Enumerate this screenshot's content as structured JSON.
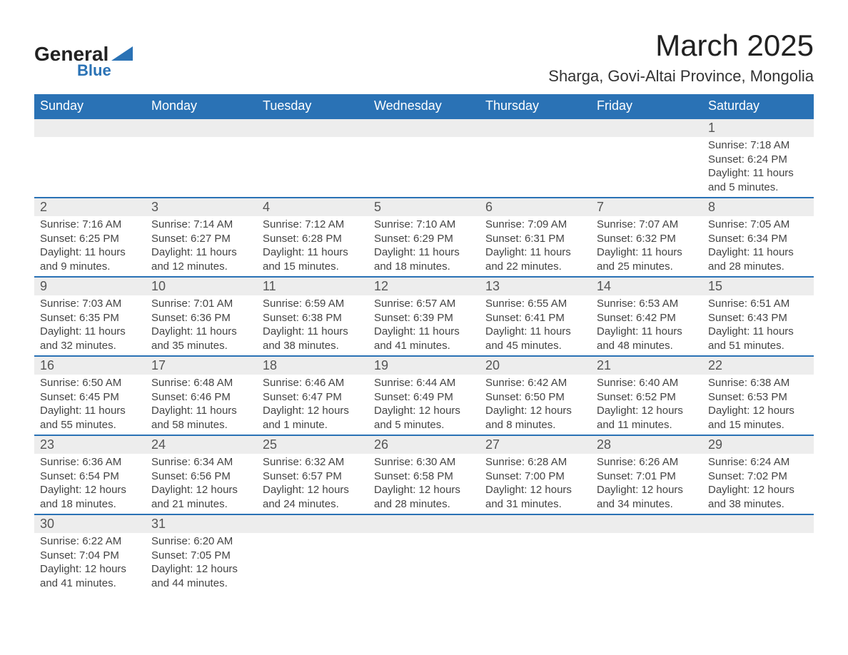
{
  "logo": {
    "text1": "General",
    "text2": "Blue"
  },
  "title": "March 2025",
  "location": "Sharga, Govi-Altai Province, Mongolia",
  "colors": {
    "header_bg": "#2a72b5",
    "header_text": "#ffffff",
    "daynum_bg": "#ededed",
    "body_text": "#444444",
    "row_divider": "#2a72b5"
  },
  "fonts": {
    "title_size_pt": 32,
    "location_size_pt": 17,
    "weekday_size_pt": 14,
    "daynum_size_pt": 14,
    "cell_size_pt": 11
  },
  "weekdays": [
    "Sunday",
    "Monday",
    "Tuesday",
    "Wednesday",
    "Thursday",
    "Friday",
    "Saturday"
  ],
  "weeks": [
    [
      null,
      null,
      null,
      null,
      null,
      null,
      {
        "n": "1",
        "sr": "Sunrise: 7:18 AM",
        "ss": "Sunset: 6:24 PM",
        "d1": "Daylight: 11 hours",
        "d2": "and 5 minutes."
      }
    ],
    [
      {
        "n": "2",
        "sr": "Sunrise: 7:16 AM",
        "ss": "Sunset: 6:25 PM",
        "d1": "Daylight: 11 hours",
        "d2": "and 9 minutes."
      },
      {
        "n": "3",
        "sr": "Sunrise: 7:14 AM",
        "ss": "Sunset: 6:27 PM",
        "d1": "Daylight: 11 hours",
        "d2": "and 12 minutes."
      },
      {
        "n": "4",
        "sr": "Sunrise: 7:12 AM",
        "ss": "Sunset: 6:28 PM",
        "d1": "Daylight: 11 hours",
        "d2": "and 15 minutes."
      },
      {
        "n": "5",
        "sr": "Sunrise: 7:10 AM",
        "ss": "Sunset: 6:29 PM",
        "d1": "Daylight: 11 hours",
        "d2": "and 18 minutes."
      },
      {
        "n": "6",
        "sr": "Sunrise: 7:09 AM",
        "ss": "Sunset: 6:31 PM",
        "d1": "Daylight: 11 hours",
        "d2": "and 22 minutes."
      },
      {
        "n": "7",
        "sr": "Sunrise: 7:07 AM",
        "ss": "Sunset: 6:32 PM",
        "d1": "Daylight: 11 hours",
        "d2": "and 25 minutes."
      },
      {
        "n": "8",
        "sr": "Sunrise: 7:05 AM",
        "ss": "Sunset: 6:34 PM",
        "d1": "Daylight: 11 hours",
        "d2": "and 28 minutes."
      }
    ],
    [
      {
        "n": "9",
        "sr": "Sunrise: 7:03 AM",
        "ss": "Sunset: 6:35 PM",
        "d1": "Daylight: 11 hours",
        "d2": "and 32 minutes."
      },
      {
        "n": "10",
        "sr": "Sunrise: 7:01 AM",
        "ss": "Sunset: 6:36 PM",
        "d1": "Daylight: 11 hours",
        "d2": "and 35 minutes."
      },
      {
        "n": "11",
        "sr": "Sunrise: 6:59 AM",
        "ss": "Sunset: 6:38 PM",
        "d1": "Daylight: 11 hours",
        "d2": "and 38 minutes."
      },
      {
        "n": "12",
        "sr": "Sunrise: 6:57 AM",
        "ss": "Sunset: 6:39 PM",
        "d1": "Daylight: 11 hours",
        "d2": "and 41 minutes."
      },
      {
        "n": "13",
        "sr": "Sunrise: 6:55 AM",
        "ss": "Sunset: 6:41 PM",
        "d1": "Daylight: 11 hours",
        "d2": "and 45 minutes."
      },
      {
        "n": "14",
        "sr": "Sunrise: 6:53 AM",
        "ss": "Sunset: 6:42 PM",
        "d1": "Daylight: 11 hours",
        "d2": "and 48 minutes."
      },
      {
        "n": "15",
        "sr": "Sunrise: 6:51 AM",
        "ss": "Sunset: 6:43 PM",
        "d1": "Daylight: 11 hours",
        "d2": "and 51 minutes."
      }
    ],
    [
      {
        "n": "16",
        "sr": "Sunrise: 6:50 AM",
        "ss": "Sunset: 6:45 PM",
        "d1": "Daylight: 11 hours",
        "d2": "and 55 minutes."
      },
      {
        "n": "17",
        "sr": "Sunrise: 6:48 AM",
        "ss": "Sunset: 6:46 PM",
        "d1": "Daylight: 11 hours",
        "d2": "and 58 minutes."
      },
      {
        "n": "18",
        "sr": "Sunrise: 6:46 AM",
        "ss": "Sunset: 6:47 PM",
        "d1": "Daylight: 12 hours",
        "d2": "and 1 minute."
      },
      {
        "n": "19",
        "sr": "Sunrise: 6:44 AM",
        "ss": "Sunset: 6:49 PM",
        "d1": "Daylight: 12 hours",
        "d2": "and 5 minutes."
      },
      {
        "n": "20",
        "sr": "Sunrise: 6:42 AM",
        "ss": "Sunset: 6:50 PM",
        "d1": "Daylight: 12 hours",
        "d2": "and 8 minutes."
      },
      {
        "n": "21",
        "sr": "Sunrise: 6:40 AM",
        "ss": "Sunset: 6:52 PM",
        "d1": "Daylight: 12 hours",
        "d2": "and 11 minutes."
      },
      {
        "n": "22",
        "sr": "Sunrise: 6:38 AM",
        "ss": "Sunset: 6:53 PM",
        "d1": "Daylight: 12 hours",
        "d2": "and 15 minutes."
      }
    ],
    [
      {
        "n": "23",
        "sr": "Sunrise: 6:36 AM",
        "ss": "Sunset: 6:54 PM",
        "d1": "Daylight: 12 hours",
        "d2": "and 18 minutes."
      },
      {
        "n": "24",
        "sr": "Sunrise: 6:34 AM",
        "ss": "Sunset: 6:56 PM",
        "d1": "Daylight: 12 hours",
        "d2": "and 21 minutes."
      },
      {
        "n": "25",
        "sr": "Sunrise: 6:32 AM",
        "ss": "Sunset: 6:57 PM",
        "d1": "Daylight: 12 hours",
        "d2": "and 24 minutes."
      },
      {
        "n": "26",
        "sr": "Sunrise: 6:30 AM",
        "ss": "Sunset: 6:58 PM",
        "d1": "Daylight: 12 hours",
        "d2": "and 28 minutes."
      },
      {
        "n": "27",
        "sr": "Sunrise: 6:28 AM",
        "ss": "Sunset: 7:00 PM",
        "d1": "Daylight: 12 hours",
        "d2": "and 31 minutes."
      },
      {
        "n": "28",
        "sr": "Sunrise: 6:26 AM",
        "ss": "Sunset: 7:01 PM",
        "d1": "Daylight: 12 hours",
        "d2": "and 34 minutes."
      },
      {
        "n": "29",
        "sr": "Sunrise: 6:24 AM",
        "ss": "Sunset: 7:02 PM",
        "d1": "Daylight: 12 hours",
        "d2": "and 38 minutes."
      }
    ],
    [
      {
        "n": "30",
        "sr": "Sunrise: 6:22 AM",
        "ss": "Sunset: 7:04 PM",
        "d1": "Daylight: 12 hours",
        "d2": "and 41 minutes."
      },
      {
        "n": "31",
        "sr": "Sunrise: 6:20 AM",
        "ss": "Sunset: 7:05 PM",
        "d1": "Daylight: 12 hours",
        "d2": "and 44 minutes."
      },
      null,
      null,
      null,
      null,
      null
    ]
  ]
}
